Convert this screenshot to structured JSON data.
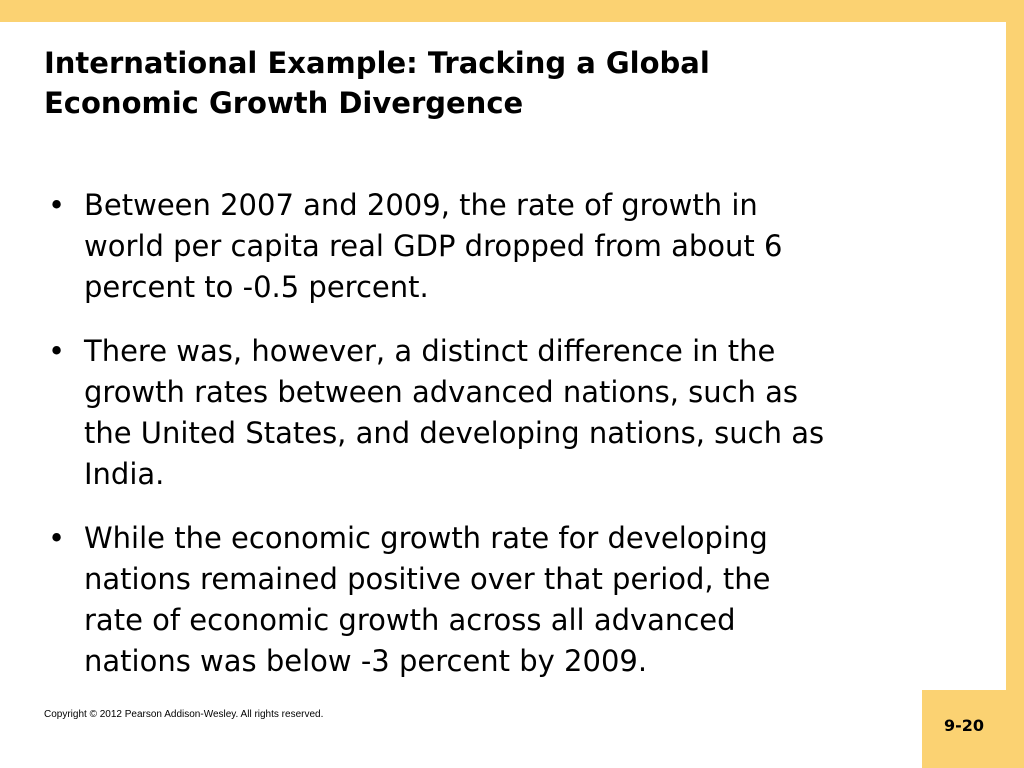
{
  "slide": {
    "title_lines": [
      "International Example: Tracking a Global",
      "Economic Growth Divergence"
    ],
    "bullet_glyph": "•",
    "bullets": [
      {
        "lines": [
          "Between 2007 and 2009, the rate of growth in",
          "world per capita real GDP dropped from about 6",
          "percent to -0.5 percent."
        ]
      },
      {
        "lines": [
          "There was, however, a distinct difference in the",
          "growth rates between advanced nations, such as",
          "the United States, and developing nations, such as",
          "India."
        ]
      },
      {
        "lines": [
          "While the economic growth rate for developing",
          "nations remained positive over that period, the",
          "rate of economic growth across all advanced",
          "nations was below -3 percent by 2009."
        ]
      }
    ],
    "copyright": "Copyright © 2012 Pearson Addison-Wesley. All rights reserved.",
    "slide_number": "9-20"
  },
  "colors": {
    "accent_frame": "#FBD272",
    "background": "#FFFFFF",
    "text": "#000000"
  }
}
